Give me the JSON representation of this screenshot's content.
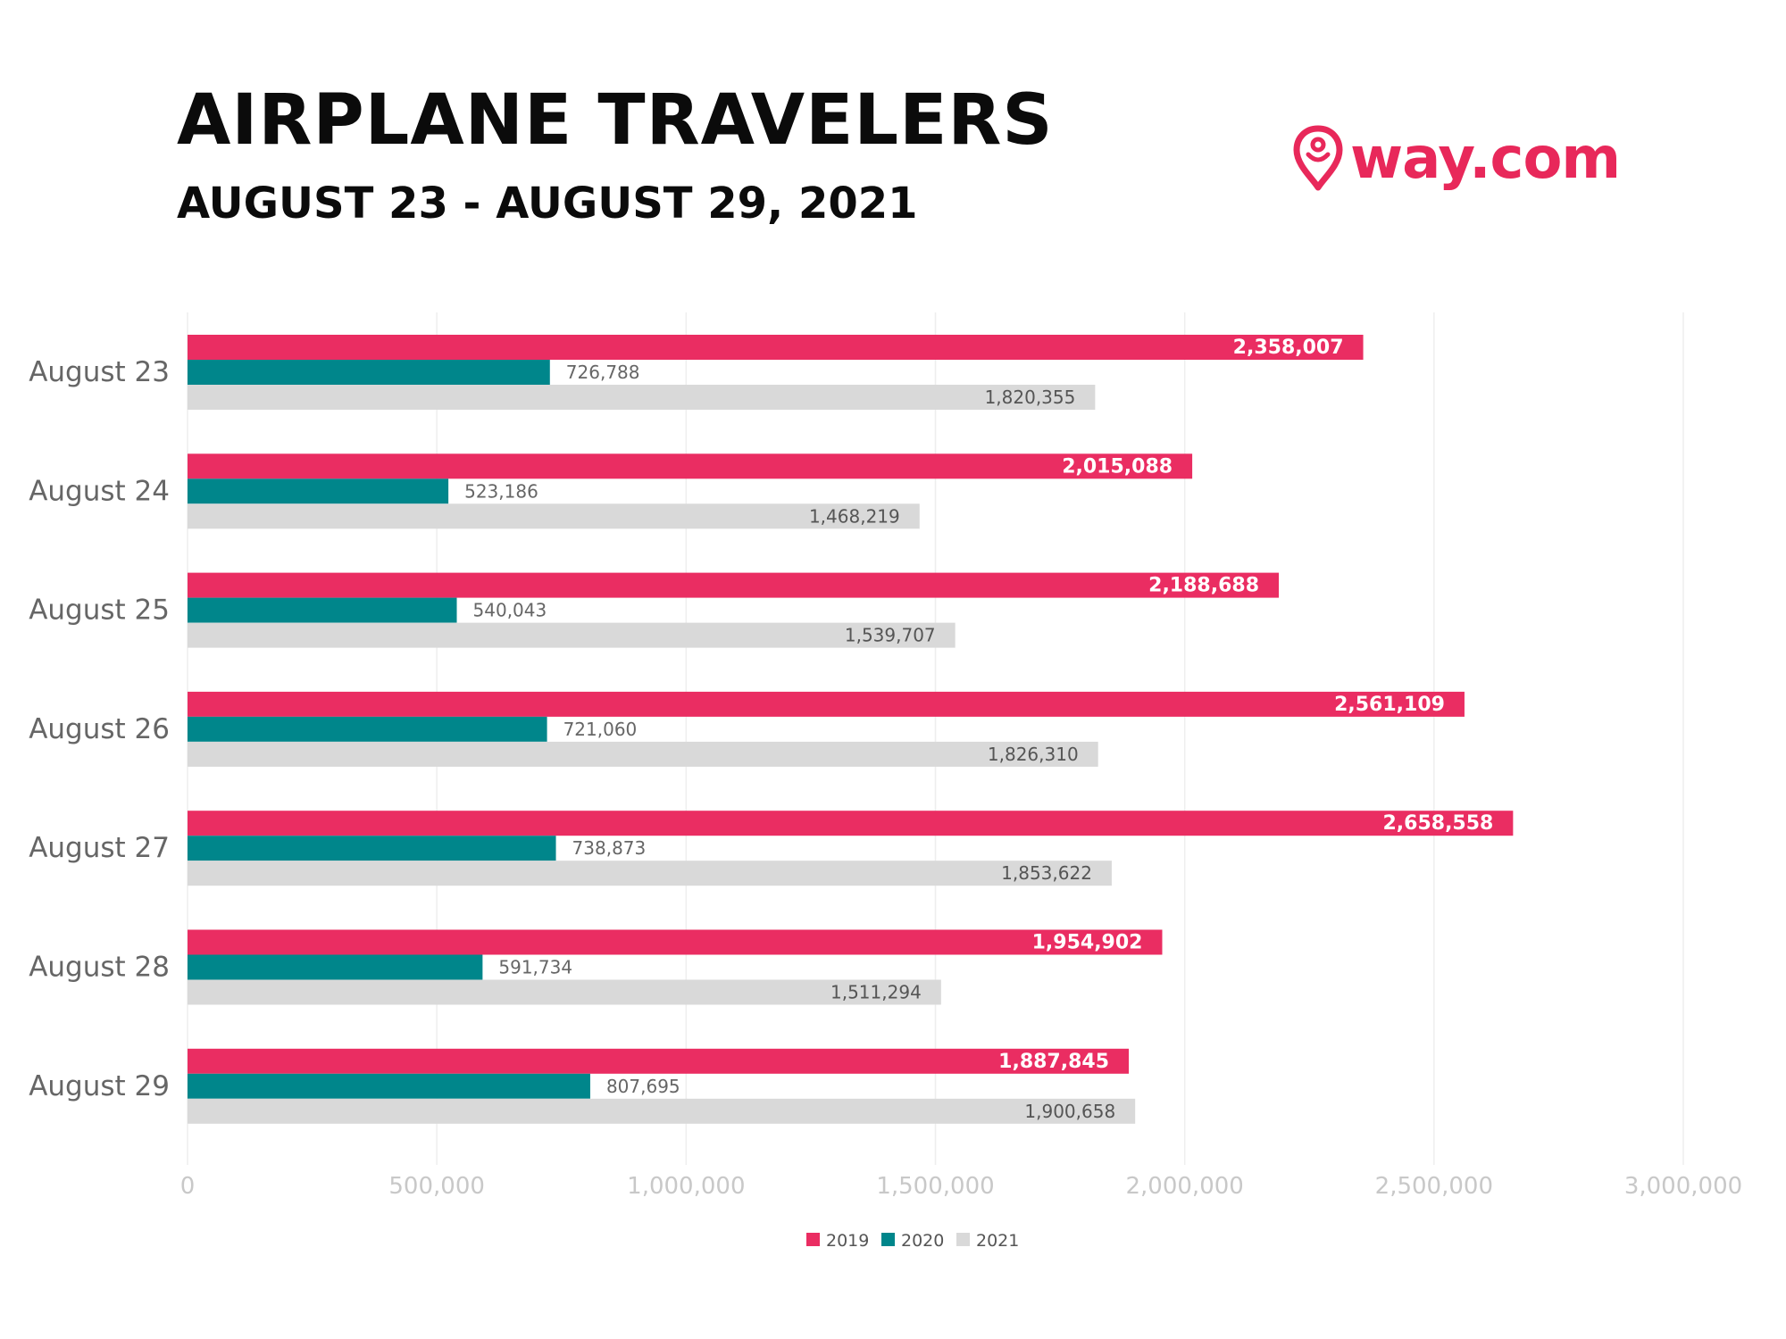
{
  "header": {
    "title": "AIRPLANE TRAVELERS",
    "subtitle": "AUGUST 23 - AUGUST 29, 2021",
    "logo_text": "way.com"
  },
  "colors": {
    "2019": "#ea2d62",
    "2020": "#00868b",
    "2021": "#d9d9d9",
    "brand": "#e8285a",
    "grid": "#eeeeee",
    "tick_text": "#c8c8c8",
    "category_text": "#666666"
  },
  "chart_data": {
    "type": "bar",
    "orientation": "horizontal",
    "title": "AIRPLANE TRAVELERS",
    "subtitle": "AUGUST 23 - AUGUST 29, 2021",
    "categories": [
      "August 23",
      "August 24",
      "August 25",
      "August 26",
      "August 27",
      "August 28",
      "August 29"
    ],
    "series": [
      {
        "name": "2019",
        "values": [
          2358007,
          2015088,
          2188688,
          2561109,
          2658558,
          1954902,
          1887845
        ],
        "labels": [
          "2,358,007",
          "2,015,088",
          "2,188,688",
          "2,561,109",
          "2,658,558",
          "1,954,902",
          "1,887,845"
        ]
      },
      {
        "name": "2020",
        "values": [
          726788,
          523186,
          540043,
          721060,
          738873,
          591734,
          807695
        ],
        "labels": [
          "726,788",
          "523,186",
          "540,043",
          "721,060",
          "738,873",
          "591,734",
          "807,695"
        ]
      },
      {
        "name": "2021",
        "values": [
          1820355,
          1468219,
          1539707,
          1826310,
          1853622,
          1511294,
          1900658
        ],
        "labels": [
          "1,820,355",
          "1,468,219",
          "1,539,707",
          "1,826,310",
          "1,853,622",
          "1,511,294",
          "1,900,658"
        ]
      }
    ],
    "xlim": [
      0,
      3000000
    ],
    "x_ticks": [
      0,
      500000,
      1000000,
      1500000,
      2000000,
      2500000,
      3000000
    ],
    "x_tick_labels": [
      "0",
      "500,000",
      "1,000,000",
      "1,500,000",
      "2,000,000",
      "2,500,000",
      "3,000,000"
    ],
    "grid": true,
    "legend_position": "bottom-center"
  }
}
